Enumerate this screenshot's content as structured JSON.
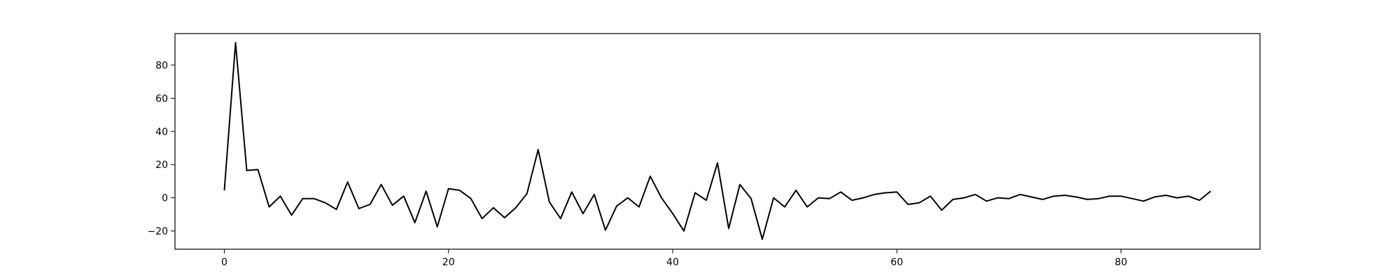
{
  "chart_data": {
    "type": "line",
    "title": "",
    "xlabel": "",
    "ylabel": "",
    "xlim": [
      -4.4,
      92.4
    ],
    "ylim": [
      -31,
      99
    ],
    "grid": false,
    "legend": "none",
    "x_ticks": [
      0,
      20,
      40,
      60,
      80
    ],
    "y_ticks": [
      -20,
      0,
      20,
      40,
      60,
      80
    ],
    "series": [
      {
        "color": "#000000",
        "x": [
          0,
          1,
          2,
          3,
          4,
          5,
          6,
          7,
          8,
          9,
          10,
          11,
          12,
          13,
          14,
          15,
          16,
          17,
          18,
          19,
          20,
          21,
          22,
          23,
          24,
          25,
          26,
          27,
          28,
          29,
          30,
          31,
          32,
          33,
          34,
          35,
          36,
          37,
          38,
          39,
          40,
          41,
          42,
          43,
          44,
          45,
          46,
          47,
          48,
          49,
          50,
          51,
          52,
          53,
          54,
          55,
          56,
          57,
          58,
          59,
          60,
          61,
          62,
          63,
          64,
          65,
          66,
          67,
          68,
          69,
          70,
          71,
          72,
          73,
          74,
          75,
          76,
          77,
          78,
          79,
          80,
          81,
          82,
          83,
          84,
          85,
          86,
          87,
          88
        ],
        "values": [
          4.5,
          93.5,
          16.5,
          17,
          -5.5,
          1,
          -10.5,
          -0.5,
          -0.5,
          -3,
          -7,
          9.5,
          -6.5,
          -4,
          8,
          -4.5,
          1,
          -15,
          4,
          -17.5,
          5.5,
          4.5,
          -0.5,
          -12.5,
          -6,
          -12,
          -6,
          2.5,
          29,
          -2.5,
          -12.5,
          3.5,
          -9.5,
          2,
          -19.5,
          -5,
          0,
          -5.5,
          13,
          0,
          -9.5,
          -20,
          3,
          -1.5,
          21,
          -18.5,
          8,
          -0.5,
          -25,
          0,
          -5.5,
          4.5,
          -5.5,
          0,
          -0.5,
          3.5,
          -1.5,
          0,
          2,
          3,
          3.5,
          -4,
          -3,
          1,
          -7.5,
          -1,
          0,
          2,
          -2,
          0,
          -0.5,
          2,
          0.5,
          -1,
          1,
          1.5,
          0.5,
          -1,
          -0.5,
          1,
          1,
          -0.5,
          -2,
          0.5,
          1.5,
          0,
          1,
          -1.5,
          4
        ]
      }
    ]
  }
}
